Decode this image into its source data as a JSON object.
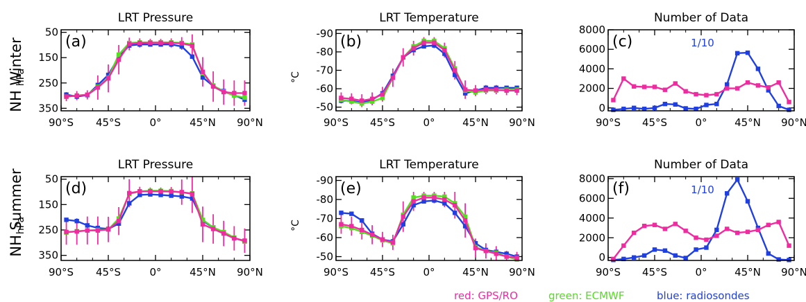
{
  "figure": {
    "row_labels": [
      "NH Winter",
      "NH Summer"
    ],
    "legend": [
      {
        "label": "red: GPS/RO",
        "color": "#ee2ca0"
      },
      {
        "label": "green: ECMWF",
        "color": "#55dd22"
      },
      {
        "label": "blue: radiosondes",
        "color": "#1f3fe0"
      }
    ]
  },
  "chart_data": [
    {
      "type": "line",
      "panel_label": "(a)",
      "title": "LRT Pressure",
      "ylabel": "hPa",
      "xlabel": "",
      "x_ticks": [
        "90°S",
        "45°S",
        "0°",
        "45°N",
        "90°N"
      ],
      "x_tick_values": [
        -90,
        -45,
        0,
        45,
        90
      ],
      "xlim": [
        -90,
        90
      ],
      "ylim": [
        360,
        40
      ],
      "y_ticks": [
        50,
        150,
        250,
        350
      ],
      "x": [
        -85,
        -75,
        -65,
        -55,
        -45,
        -35,
        -25,
        -15,
        -5,
        5,
        15,
        25,
        35,
        45,
        55,
        65,
        75,
        85
      ],
      "series": [
        {
          "color": "#1f3fe0",
          "values": [
            296,
            304,
            298,
            258,
            218,
            148,
            102,
            98,
            98,
            98,
            98,
            106,
            146,
            228,
            262,
            282,
            298,
            316
          ]
        },
        {
          "color": "#55dd22",
          "values": [
            304,
            300,
            296,
            265,
            230,
            138,
            92,
            90,
            90,
            90,
            90,
            92,
            98,
            212,
            260,
            284,
            300,
            308
          ]
        },
        {
          "color": "#ee2ca0",
          "values": [
            304,
            300,
            297,
            268,
            232,
            158,
            96,
            92,
            91,
            91,
            92,
            94,
            103,
            206,
            264,
            286,
            290,
            290
          ],
          "error": [
            18,
            18,
            18,
            48,
            55,
            58,
            25,
            18,
            15,
            15,
            18,
            25,
            45,
            58,
            60,
            50,
            50,
            50
          ]
        }
      ]
    },
    {
      "type": "line",
      "panel_label": "(b)",
      "title": "LRT Temperature",
      "ylabel": "°C",
      "xlabel": "",
      "x_ticks": [
        "90°S",
        "45°S",
        "0°",
        "45°N",
        "90°N"
      ],
      "x_tick_values": [
        -90,
        -45,
        0,
        45,
        90
      ],
      "xlim": [
        -90,
        90
      ],
      "ylim": [
        -48,
        -92
      ],
      "y_ticks": [
        -50,
        -60,
        -70,
        -80,
        -90
      ],
      "x": [
        -85,
        -75,
        -65,
        -55,
        -45,
        -35,
        -25,
        -15,
        -5,
        5,
        15,
        25,
        35,
        45,
        55,
        65,
        75,
        85
      ],
      "series": [
        {
          "color": "#1f3fe0",
          "values": [
            -53.5,
            -53.5,
            -52.5,
            -54,
            -57.5,
            -67,
            -77,
            -81,
            -83,
            -83.5,
            -79,
            -67.5,
            -57.5,
            -59,
            -60.5,
            -60.5,
            -60.5,
            -60.5
          ]
        },
        {
          "color": "#55dd22",
          "values": [
            -54,
            -53,
            -52,
            -53,
            -55,
            -66,
            -77,
            -83,
            -86,
            -86,
            -82,
            -71,
            -59,
            -58,
            -59,
            -59,
            -59.5,
            -59.5
          ]
        },
        {
          "color": "#ee2ca0",
          "values": [
            -55,
            -54.5,
            -53.5,
            -54.5,
            -57,
            -66,
            -77,
            -82,
            -85,
            -85,
            -81,
            -70,
            -59.5,
            -59,
            -59.5,
            -59.5,
            -59,
            -59
          ],
          "error": [
            3,
            3,
            3.5,
            3.5,
            4,
            5,
            5,
            4,
            3,
            3,
            4,
            5,
            5,
            3,
            2.5,
            2.5,
            2.5,
            2.5
          ]
        }
      ]
    },
    {
      "type": "line",
      "panel_label": "(c)",
      "title": "Number of Data",
      "annotation": "1/10",
      "ylabel": "",
      "xlabel": "",
      "x_ticks": [
        "90°S",
        "45°S",
        "0°",
        "45°N",
        "90°N"
      ],
      "x_tick_values": [
        -90,
        -45,
        0,
        45,
        90
      ],
      "xlim": [
        -90,
        90
      ],
      "ylim": [
        -300,
        8000
      ],
      "y_ticks": [
        0,
        2000,
        4000,
        6000,
        8000
      ],
      "x": [
        -85,
        -75,
        -65,
        -55,
        -45,
        -35,
        -25,
        -15,
        -5,
        5,
        15,
        25,
        35,
        45,
        55,
        65,
        75,
        85
      ],
      "series": [
        {
          "color": "#1f3fe0",
          "values": [
            -200,
            -100,
            0,
            -100,
            0,
            400,
            350,
            -50,
            -100,
            300,
            400,
            2400,
            5600,
            5650,
            4000,
            1800,
            200,
            -200
          ]
        },
        {
          "color": "#ee2ca0",
          "values": [
            800,
            3000,
            2200,
            2150,
            2150,
            1850,
            2500,
            1700,
            1400,
            1300,
            1400,
            2000,
            2000,
            2600,
            2300,
            2100,
            2600,
            600
          ]
        }
      ]
    },
    {
      "type": "line",
      "panel_label": "(d)",
      "title": "LRT Pressure",
      "ylabel": "hPa",
      "xlabel": "",
      "x_ticks": [
        "90°S",
        "45°S",
        "0°",
        "45°N",
        "90°N"
      ],
      "x_tick_values": [
        -90,
        -45,
        0,
        45,
        90
      ],
      "xlim": [
        -90,
        90
      ],
      "ylim": [
        370,
        40
      ],
      "y_ticks": [
        50,
        150,
        250,
        350
      ],
      "x": [
        -85,
        -75,
        -65,
        -55,
        -45,
        -35,
        -25,
        -15,
        -5,
        5,
        15,
        25,
        35,
        45,
        55,
        65,
        75,
        85
      ],
      "series": [
        {
          "color": "#1f3fe0",
          "values": [
            210,
            215,
            232,
            242,
            246,
            225,
            145,
            112,
            110,
            112,
            115,
            118,
            126,
            214,
            240,
            262,
            282,
            294
          ]
        },
        {
          "color": "#55dd22",
          "values": [
            260,
            255,
            252,
            250,
            248,
            205,
            108,
            98,
            96,
            96,
            97,
            102,
            106,
            210,
            240,
            258,
            280,
            296
          ]
        },
        {
          "color": "#ee2ca0",
          "values": [
            258,
            256,
            252,
            252,
            248,
            215,
            105,
            98,
            98,
            98,
            99,
            101,
            108,
            228,
            246,
            264,
            283,
            292
          ],
          "error": [
            50,
            52,
            55,
            55,
            50,
            55,
            55,
            18,
            15,
            15,
            18,
            50,
            75,
            70,
            58,
            50,
            48,
            48
          ]
        }
      ]
    },
    {
      "type": "line",
      "panel_label": "(e)",
      "title": "LRT Temperature",
      "ylabel": "°C",
      "xlabel": "",
      "x_ticks": [
        "90°S",
        "45°S",
        "0°",
        "45°N",
        "90°N"
      ],
      "x_tick_values": [
        -90,
        -45,
        0,
        45,
        90
      ],
      "xlim": [
        -90,
        90
      ],
      "ylim": [
        -48,
        -92
      ],
      "y_ticks": [
        -50,
        -60,
        -70,
        -80,
        -90
      ],
      "x": [
        -85,
        -75,
        -65,
        -55,
        -45,
        -35,
        -25,
        -15,
        -5,
        5,
        15,
        25,
        35,
        45,
        55,
        65,
        75,
        85
      ],
      "series": [
        {
          "color": "#1f3fe0",
          "values": [
            -73,
            -72.5,
            -69,
            -62,
            -59,
            -58,
            -67,
            -77,
            -79,
            -79.5,
            -78,
            -73,
            -66,
            -57,
            -53.5,
            -52.5,
            -51.5,
            -50
          ]
        },
        {
          "color": "#55dd22",
          "values": [
            -66,
            -65,
            -63,
            -61,
            -58.5,
            -57,
            -72,
            -81,
            -82,
            -82,
            -81.5,
            -78,
            -71,
            -55,
            -53,
            -52,
            -50,
            -48.5
          ]
        },
        {
          "color": "#ee2ca0",
          "values": [
            -67,
            -66,
            -64,
            -61.5,
            -59,
            -57.5,
            -71,
            -79,
            -81,
            -81,
            -80,
            -77,
            -69,
            -54.5,
            -53,
            -51.5,
            -50,
            -49.5
          ],
          "error": [
            5,
            5,
            5,
            5,
            4,
            4,
            8,
            5,
            3,
            3,
            4,
            7,
            9,
            5,
            4,
            4,
            3,
            3
          ]
        }
      ]
    },
    {
      "type": "line",
      "panel_label": "(f)",
      "title": "Number of Data",
      "annotation": "1/10",
      "ylabel": "",
      "xlabel": "",
      "x_ticks": [
        "90°S",
        "45°S",
        "0°",
        "45°N",
        "90°N"
      ],
      "x_tick_values": [
        -90,
        -45,
        0,
        45,
        90
      ],
      "xlim": [
        -90,
        90
      ],
      "ylim": [
        -300,
        8200
      ],
      "y_ticks": [
        0,
        2000,
        4000,
        6000,
        8000
      ],
      "x": [
        -85,
        -75,
        -65,
        -55,
        -45,
        -35,
        -25,
        -15,
        -5,
        5,
        15,
        25,
        35,
        45,
        55,
        65,
        75,
        85
      ],
      "series": [
        {
          "color": "#1f3fe0",
          "values": [
            -250,
            -150,
            0,
            200,
            800,
            700,
            200,
            -50,
            800,
            1000,
            2800,
            6500,
            7900,
            5700,
            3000,
            400,
            -200,
            -250
          ]
        },
        {
          "color": "#ee2ca0",
          "values": [
            -150,
            1200,
            2500,
            3200,
            3300,
            2900,
            3400,
            2700,
            2000,
            1800,
            2200,
            2900,
            2500,
            2600,
            2800,
            3300,
            3600,
            1200
          ]
        }
      ]
    }
  ]
}
